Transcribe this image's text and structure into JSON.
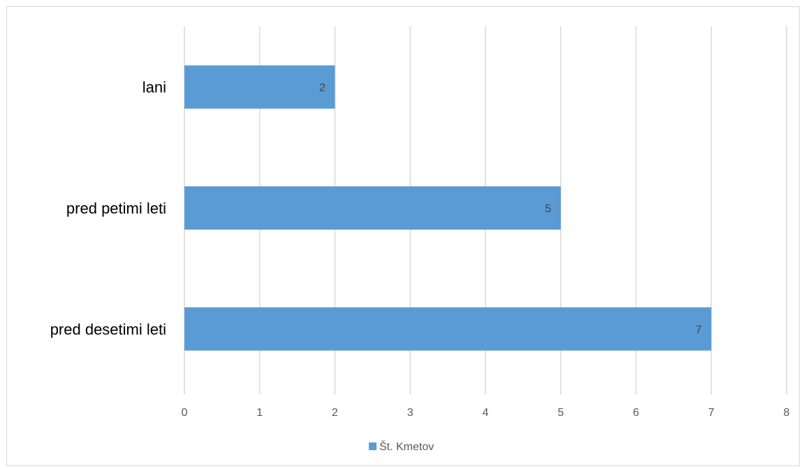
{
  "chart_data": {
    "type": "bar",
    "orientation": "horizontal",
    "categories": [
      "lani",
      "pred petimi leti",
      "pred desetimi leti"
    ],
    "series": [
      {
        "name": "Št. Kmetov",
        "values": [
          2,
          5,
          7
        ],
        "color": "#5b9bd5"
      }
    ],
    "xlim": [
      0,
      8
    ],
    "x_ticks": [
      "0",
      "1",
      "2",
      "3",
      "4",
      "5",
      "6",
      "7",
      "8"
    ],
    "data_labels": [
      "2",
      "5",
      "7"
    ],
    "grid": true,
    "legend": "bottom",
    "title": "",
    "xlabel": "",
    "ylabel": ""
  },
  "colors": {
    "bar": "#5b9bd5",
    "grid": "#d9d9d9",
    "border": "#d9d9d9"
  }
}
